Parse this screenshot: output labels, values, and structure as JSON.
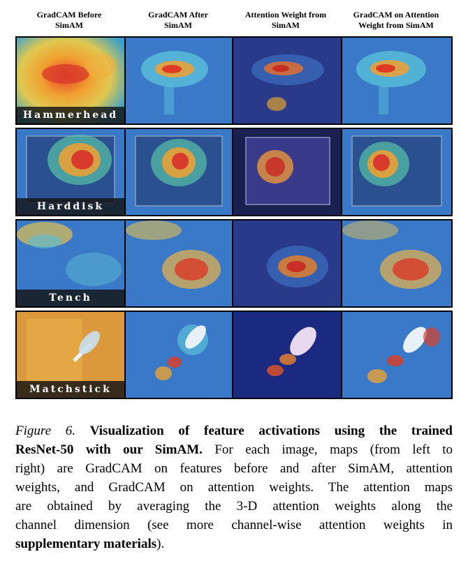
{
  "columns": [
    {
      "line1": "GradCAM Before",
      "line2": "SimAM"
    },
    {
      "line1": "GradCAM After",
      "line2": "SimAM"
    },
    {
      "line1": "Attention Weight from",
      "line2": "SimAM"
    },
    {
      "line1": "GradCAM on Attention",
      "line2": "Weight from SimAM"
    }
  ],
  "rows": [
    {
      "label": "Hammerhead"
    },
    {
      "label": "Harddisk"
    },
    {
      "label": "Tench"
    },
    {
      "label": "Matchstick"
    }
  ],
  "caption": {
    "figure_label": "Figure 6.",
    "bold_title_1": "Visualization of feature activations using the trained",
    "bold_title_2": "ResNet-50 with our SimAM.",
    "text_1": "For each image, maps (from left to",
    "text_2": "right) are GradCAM on features before and after SimAM, attention",
    "text_3": "weights, and GradCAM on attention weights. The attention maps",
    "text_4": "are obtained by averaging the 3-D attention weights along the",
    "text_5": "channel dimension (see more channel-wise attention weights in",
    "bold_ref": "supplementary materials",
    "text_end": ")."
  }
}
